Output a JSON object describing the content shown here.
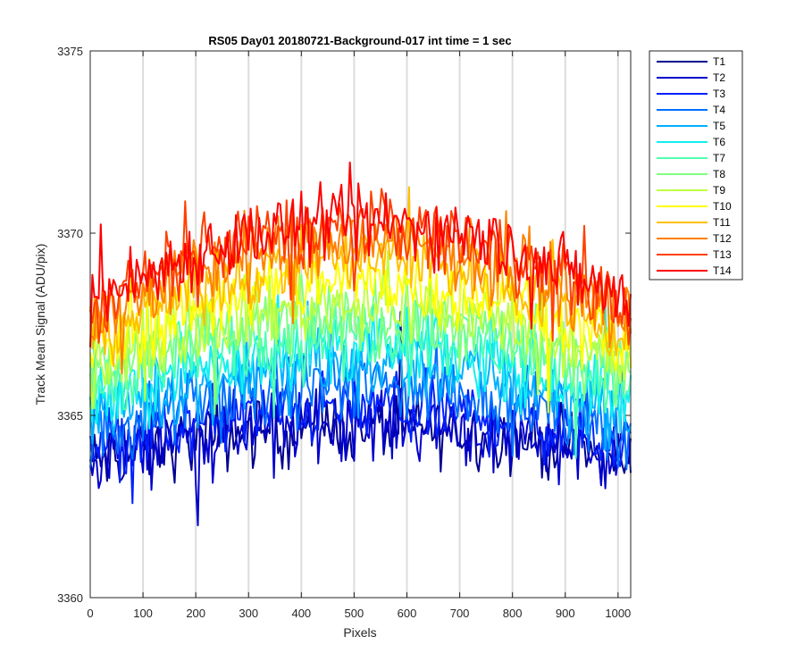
{
  "chart_data": {
    "type": "line",
    "title": "RS05 Day01 20180721-Background-017 int time = 1 sec",
    "xlabel": "Pixels",
    "ylabel": "Track Mean Signal (ADU/pix)",
    "xlim": [
      0,
      1024
    ],
    "ylim": [
      3360,
      3375
    ],
    "xticks": [
      0,
      100,
      200,
      300,
      400,
      500,
      600,
      700,
      800,
      900,
      1000
    ],
    "yticks": [
      3360,
      3365,
      3370,
      3375
    ],
    "grid": "vertical",
    "legend_position": "outside-top-right",
    "x_sampling": {
      "start": 0,
      "stop": 1024,
      "step": 4
    },
    "series": [
      {
        "name": "T1",
        "color": "#00008f",
        "center": 3364.7,
        "edge": 3363.7,
        "noise": 0.8
      },
      {
        "name": "T2",
        "color": "#0000cc",
        "center": 3364.8,
        "edge": 3363.8,
        "noise": 0.8
      },
      {
        "name": "T3",
        "color": "#0020ff",
        "center": 3365.2,
        "edge": 3364.1,
        "noise": 0.8
      },
      {
        "name": "T4",
        "color": "#0070ff",
        "center": 3365.8,
        "edge": 3364.5,
        "noise": 0.8
      },
      {
        "name": "T5",
        "color": "#00b0ff",
        "center": 3366.4,
        "edge": 3364.9,
        "noise": 0.8
      },
      {
        "name": "T6",
        "color": "#10f0f0",
        "center": 3366.9,
        "edge": 3365.3,
        "noise": 0.8
      },
      {
        "name": "T7",
        "color": "#50ffb0",
        "center": 3367.3,
        "edge": 3365.7,
        "noise": 0.8
      },
      {
        "name": "T8",
        "color": "#80ff80",
        "center": 3367.7,
        "edge": 3366.0,
        "noise": 0.8
      },
      {
        "name": "T9",
        "color": "#c0ff40",
        "center": 3368.1,
        "edge": 3366.3,
        "noise": 0.8
      },
      {
        "name": "T10",
        "color": "#ffff00",
        "center": 3368.7,
        "edge": 3366.7,
        "noise": 0.8
      },
      {
        "name": "T11",
        "color": "#ffbf00",
        "center": 3369.3,
        "edge": 3367.1,
        "noise": 0.8
      },
      {
        "name": "T12",
        "color": "#ff8000",
        "center": 3369.8,
        "edge": 3367.5,
        "noise": 0.8
      },
      {
        "name": "T13",
        "color": "#ff4000",
        "center": 3370.2,
        "edge": 3367.8,
        "noise": 0.8
      },
      {
        "name": "T14",
        "color": "#ff0000",
        "center": 3370.3,
        "edge": 3368.0,
        "noise": 0.8
      }
    ]
  }
}
